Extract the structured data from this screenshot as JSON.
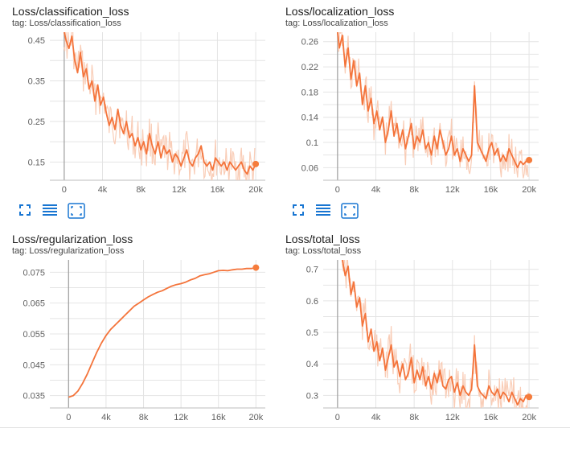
{
  "accent_color": "#f57c3c",
  "smooth_color": "#f4743b",
  "raw_color": "#f9cdb7",
  "toolbar_icons": [
    "fullscreen-icon",
    "data-table-icon",
    "fit-domain-icon"
  ],
  "cards": [
    {
      "title": "Loss/classification_loss",
      "tag": "tag: Loss/classification_loss",
      "has_toolbar": true
    },
    {
      "title": "Loss/localization_loss",
      "tag": "tag: Loss/localization_loss",
      "has_toolbar": true
    },
    {
      "title": "Loss/regularization_loss",
      "tag": "tag: Loss/regularization_loss",
      "has_toolbar": false
    },
    {
      "title": "Loss/total_loss",
      "tag": "tag: Loss/total_loss",
      "has_toolbar": false
    }
  ],
  "chart_data": [
    {
      "type": "line",
      "title": "Loss/classification_loss",
      "x_ticks": [
        "0",
        "4k",
        "8k",
        "12k",
        "16k",
        "20k"
      ],
      "x_tick_values": [
        0,
        4000,
        8000,
        12000,
        16000,
        20000
      ],
      "y_ticks": [
        "0.45",
        "0.35",
        "0.25",
        "0.15"
      ],
      "y_tick_values": [
        0.45,
        0.35,
        0.25,
        0.15
      ],
      "xlim": [
        -1500,
        21000
      ],
      "ylim": [
        0.105,
        0.47
      ],
      "series": [
        {
          "kind": "smoothed",
          "x": [
            0,
            200,
            500,
            800,
            1100,
            1400,
            1700,
            2000,
            2300,
            2600,
            2900,
            3200,
            3500,
            3800,
            4100,
            4400,
            4700,
            5000,
            5300,
            5600,
            5900,
            6200,
            6500,
            6800,
            7100,
            7400,
            7700,
            8000,
            8300,
            8600,
            8900,
            9200,
            9500,
            9800,
            10100,
            10400,
            10700,
            11000,
            11300,
            11600,
            11900,
            12200,
            12500,
            12800,
            13100,
            13400,
            13700,
            14000,
            14300,
            14600,
            14900,
            15200,
            15500,
            15800,
            16100,
            16400,
            16700,
            17000,
            17300,
            17600,
            17900,
            18200,
            18500,
            18800,
            19100,
            19400,
            19700,
            20000
          ],
          "y": [
            0.47,
            0.45,
            0.43,
            0.46,
            0.4,
            0.37,
            0.42,
            0.36,
            0.38,
            0.33,
            0.35,
            0.3,
            0.34,
            0.29,
            0.31,
            0.27,
            0.24,
            0.26,
            0.23,
            0.28,
            0.24,
            0.22,
            0.25,
            0.21,
            0.22,
            0.19,
            0.21,
            0.18,
            0.2,
            0.17,
            0.22,
            0.19,
            0.17,
            0.2,
            0.16,
            0.19,
            0.17,
            0.18,
            0.15,
            0.17,
            0.16,
            0.14,
            0.16,
            0.18,
            0.15,
            0.14,
            0.16,
            0.17,
            0.19,
            0.15,
            0.14,
            0.15,
            0.13,
            0.16,
            0.15,
            0.14,
            0.15,
            0.13,
            0.15,
            0.14,
            0.13,
            0.14,
            0.15,
            0.13,
            0.12,
            0.14,
            0.13,
            0.145
          ]
        }
      ]
    },
    {
      "type": "line",
      "title": "Loss/localization_loss",
      "x_ticks": [
        "0",
        "4k",
        "8k",
        "12k",
        "16k",
        "20k"
      ],
      "x_tick_values": [
        0,
        4000,
        8000,
        12000,
        16000,
        20000
      ],
      "y_ticks": [
        "0.26",
        "0.22",
        "0.18",
        "0.14",
        "0.1",
        "0.06"
      ],
      "y_tick_values": [
        0.26,
        0.22,
        0.18,
        0.14,
        0.1,
        0.06
      ],
      "xlim": [
        -1500,
        21000
      ],
      "ylim": [
        0.04,
        0.275
      ],
      "series": [
        {
          "kind": "smoothed",
          "x": [
            0,
            200,
            500,
            800,
            1100,
            1400,
            1700,
            2000,
            2300,
            2600,
            2900,
            3200,
            3500,
            3800,
            4100,
            4400,
            4700,
            5000,
            5300,
            5600,
            5900,
            6200,
            6500,
            6800,
            7100,
            7400,
            7700,
            8000,
            8300,
            8600,
            8900,
            9200,
            9500,
            9800,
            10100,
            10400,
            10700,
            11000,
            11300,
            11600,
            11900,
            12200,
            12500,
            12800,
            13100,
            13400,
            13700,
            14000,
            14300,
            14600,
            14900,
            15200,
            15500,
            15800,
            16100,
            16400,
            16700,
            17000,
            17300,
            17600,
            17900,
            18200,
            18500,
            18800,
            19100,
            19400,
            19700,
            20000
          ],
          "y": [
            0.275,
            0.25,
            0.27,
            0.22,
            0.25,
            0.2,
            0.23,
            0.19,
            0.21,
            0.16,
            0.19,
            0.15,
            0.17,
            0.13,
            0.15,
            0.12,
            0.14,
            0.1,
            0.12,
            0.15,
            0.11,
            0.13,
            0.1,
            0.12,
            0.09,
            0.11,
            0.13,
            0.09,
            0.11,
            0.1,
            0.12,
            0.09,
            0.1,
            0.08,
            0.11,
            0.09,
            0.12,
            0.1,
            0.08,
            0.09,
            0.11,
            0.08,
            0.09,
            0.07,
            0.09,
            0.08,
            0.07,
            0.08,
            0.19,
            0.1,
            0.09,
            0.08,
            0.07,
            0.09,
            0.1,
            0.08,
            0.09,
            0.07,
            0.08,
            0.07,
            0.09,
            0.08,
            0.07,
            0.06,
            0.07,
            0.065,
            0.07,
            0.072
          ]
        }
      ]
    },
    {
      "type": "line",
      "title": "Loss/regularization_loss",
      "x_ticks": [
        "0",
        "4k",
        "8k",
        "12k",
        "16k",
        "20k"
      ],
      "x_tick_values": [
        0,
        4000,
        8000,
        12000,
        16000,
        20000
      ],
      "y_ticks": [
        "0.075",
        "0.065",
        "0.055",
        "0.045",
        "0.035"
      ],
      "y_tick_values": [
        0.075,
        0.065,
        0.055,
        0.045,
        0.035
      ],
      "xlim": [
        -2000,
        21000
      ],
      "ylim": [
        0.031,
        0.079
      ],
      "series": [
        {
          "kind": "smoothed",
          "x": [
            0,
            500,
            1000,
            1500,
            2000,
            2500,
            3000,
            3500,
            4000,
            4500,
            5000,
            5500,
            6000,
            6500,
            7000,
            7500,
            8000,
            8500,
            9000,
            9500,
            10000,
            10500,
            11000,
            11500,
            12000,
            12500,
            13000,
            13500,
            14000,
            14500,
            15000,
            15500,
            16000,
            16500,
            17000,
            17500,
            18000,
            18500,
            19000,
            19500,
            20000
          ],
          "y": [
            0.0345,
            0.035,
            0.0365,
            0.039,
            0.042,
            0.0455,
            0.049,
            0.052,
            0.0545,
            0.0565,
            0.058,
            0.0595,
            0.061,
            0.0625,
            0.064,
            0.065,
            0.066,
            0.067,
            0.0678,
            0.0685,
            0.069,
            0.0698,
            0.0705,
            0.071,
            0.0713,
            0.0718,
            0.0725,
            0.073,
            0.0738,
            0.0742,
            0.0745,
            0.075,
            0.0755,
            0.0756,
            0.0755,
            0.0758,
            0.076,
            0.076,
            0.0762,
            0.0762,
            0.0765
          ]
        }
      ]
    },
    {
      "type": "line",
      "title": "Loss/total_loss",
      "x_ticks": [
        "0",
        "4k",
        "8k",
        "12k",
        "16k",
        "20k"
      ],
      "x_tick_values": [
        0,
        4000,
        8000,
        12000,
        16000,
        20000
      ],
      "y_ticks": [
        "0.7",
        "0.6",
        "0.5",
        "0.4",
        "0.3"
      ],
      "y_tick_values": [
        0.7,
        0.6,
        0.5,
        0.4,
        0.3
      ],
      "xlim": [
        -1500,
        21000
      ],
      "ylim": [
        0.26,
        0.73
      ],
      "series": [
        {
          "kind": "smoothed",
          "x": [
            500,
            800,
            1100,
            1400,
            1700,
            2000,
            2300,
            2600,
            2900,
            3200,
            3500,
            3800,
            4100,
            4400,
            4700,
            5000,
            5300,
            5600,
            5900,
            6200,
            6500,
            6800,
            7100,
            7400,
            7700,
            8000,
            8300,
            8600,
            8900,
            9200,
            9500,
            9800,
            10100,
            10400,
            10700,
            11000,
            11300,
            11600,
            11900,
            12200,
            12500,
            12800,
            13100,
            13400,
            13700,
            14000,
            14300,
            14600,
            14900,
            15200,
            15500,
            15800,
            16100,
            16400,
            16700,
            17000,
            17300,
            17600,
            17900,
            18200,
            18500,
            18800,
            19100,
            19400,
            19700,
            20000
          ],
          "y": [
            0.73,
            0.68,
            0.71,
            0.62,
            0.66,
            0.58,
            0.61,
            0.52,
            0.56,
            0.47,
            0.51,
            0.44,
            0.47,
            0.41,
            0.45,
            0.38,
            0.42,
            0.46,
            0.39,
            0.41,
            0.36,
            0.4,
            0.35,
            0.37,
            0.42,
            0.34,
            0.38,
            0.35,
            0.39,
            0.33,
            0.36,
            0.32,
            0.37,
            0.34,
            0.38,
            0.33,
            0.32,
            0.35,
            0.36,
            0.31,
            0.34,
            0.3,
            0.33,
            0.31,
            0.3,
            0.32,
            0.46,
            0.33,
            0.31,
            0.3,
            0.29,
            0.33,
            0.31,
            0.3,
            0.32,
            0.29,
            0.31,
            0.3,
            0.28,
            0.31,
            0.29,
            0.27,
            0.29,
            0.28,
            0.3,
            0.295
          ]
        }
      ]
    }
  ]
}
